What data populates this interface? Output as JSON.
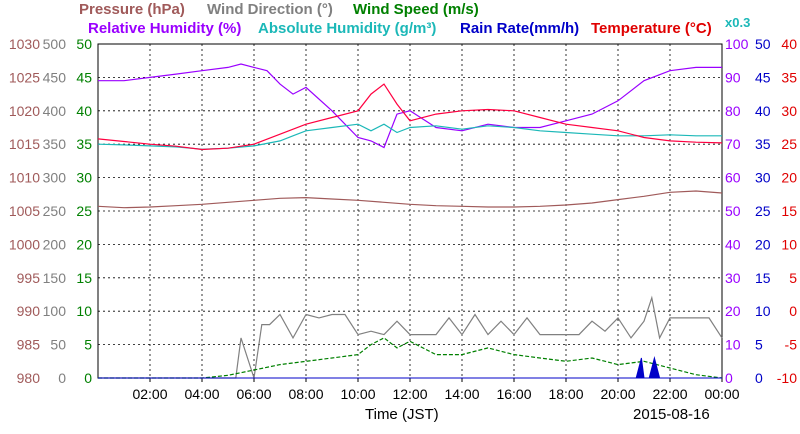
{
  "chart_data": {
    "type": "line",
    "legend": {
      "pressure": "Pressure (hPa)",
      "wind_direction": "Wind Direction (°)",
      "wind_speed": "Wind Speed (m/s)",
      "relative_humidity": "Relative Humidity (%)",
      "absolute_humidity": "Absolute Humidity (g/m³)",
      "rain_rate": "Rain Rate(mm/h)",
      "temperature": "Temperature (°C)",
      "ah_factor": "x0.3"
    },
    "xlabel": "Time (JST)",
    "date": "2015-08-16",
    "x_ticks": [
      "02:00",
      "04:00",
      "06:00",
      "08:00",
      "10:00",
      "12:00",
      "14:00",
      "16:00",
      "18:00",
      "20:00",
      "22:00",
      "00:00"
    ],
    "x_range_hours": [
      0,
      24
    ],
    "grid": true,
    "axes": {
      "pressure": {
        "ticks": [
          "980",
          "985",
          "990",
          "995",
          "1000",
          "1005",
          "1010",
          "1015",
          "1020",
          "1025",
          "1030"
        ],
        "range": [
          980,
          1030
        ],
        "color": "#a05a5a"
      },
      "wind_direction": {
        "ticks": [
          "0",
          "50",
          "100",
          "150",
          "200",
          "250",
          "300",
          "350",
          "400",
          "450",
          "500"
        ],
        "range": [
          0,
          500
        ],
        "color": "#808080"
      },
      "wind_speed": {
        "ticks": [
          "0",
          "5",
          "10",
          "15",
          "20",
          "25",
          "30",
          "35",
          "40",
          "45",
          "50"
        ],
        "range": [
          0,
          50
        ],
        "color": "#008000"
      },
      "relative_humidity": {
        "ticks": [
          "0",
          "10",
          "20",
          "30",
          "40",
          "50",
          "60",
          "70",
          "80",
          "90",
          "100"
        ],
        "range": [
          0,
          100
        ],
        "color": "#9a00ff"
      },
      "rain_rate": {
        "ticks": [
          "0",
          "5",
          "10",
          "15",
          "20",
          "25",
          "30",
          "35",
          "40",
          "45",
          "50"
        ],
        "range": [
          0,
          50
        ],
        "color": "#0000c8"
      },
      "temperature": {
        "ticks": [
          "-10",
          "-5",
          "0",
          "5",
          "10",
          "15",
          "20",
          "25",
          "30",
          "35",
          "40"
        ],
        "range": [
          -10,
          40
        ],
        "color": "#e00000"
      }
    },
    "series": [
      {
        "name": "Pressure (hPa)",
        "color": "#a05a5a",
        "x": [
          0,
          1,
          2,
          3,
          4,
          5,
          6,
          7,
          8,
          9,
          10,
          11,
          12,
          13,
          14,
          15,
          16,
          17,
          18,
          19,
          20,
          21,
          22,
          23,
          24
        ],
        "y": [
          1005.7,
          1005.5,
          1005.6,
          1005.8,
          1006.0,
          1006.3,
          1006.6,
          1006.9,
          1007.0,
          1006.8,
          1006.6,
          1006.3,
          1006.0,
          1005.8,
          1005.7,
          1005.6,
          1005.6,
          1005.7,
          1005.9,
          1006.2,
          1006.7,
          1007.2,
          1007.8,
          1008.0,
          1007.7
        ]
      },
      {
        "name": "Relative Humidity (%)",
        "color": "#9a00ff",
        "x": [
          0,
          1,
          2,
          3,
          4,
          5,
          5.5,
          6,
          6.5,
          7,
          7.5,
          8,
          9,
          10,
          10.5,
          11,
          11.5,
          12,
          13,
          14,
          15,
          16,
          17,
          18,
          19,
          20,
          21,
          22,
          23,
          24
        ],
        "y": [
          89,
          89,
          90,
          91,
          92,
          93,
          94,
          93,
          92,
          88,
          85,
          87,
          80,
          72,
          71,
          69,
          79,
          80,
          75,
          74,
          76,
          75,
          75,
          77,
          79,
          83,
          89,
          92,
          93,
          93
        ]
      },
      {
        "name": "Absolute Humidity (g/m³)",
        "color": "#1cb8b8",
        "x": [
          0,
          1,
          2,
          3,
          4,
          5,
          6,
          7,
          7.5,
          8,
          9,
          10,
          10.5,
          11,
          11.5,
          12,
          13,
          14,
          15,
          16,
          17,
          18,
          19,
          20,
          21,
          22,
          23,
          24
        ],
        "y": [
          70.0,
          69.8,
          69.5,
          69.2,
          68.5,
          68.8,
          69.5,
          71.0,
          72.5,
          74.0,
          75.0,
          76.0,
          74.0,
          76.0,
          73.5,
          75.0,
          75.5,
          74.5,
          75.5,
          75.0,
          74.0,
          73.5,
          73.0,
          72.5,
          72.5,
          72.8,
          72.5,
          72.5
        ]
      },
      {
        "name": "Temperature (°C)",
        "color": "#ff0040",
        "x": [
          0,
          1,
          2,
          3,
          4,
          5,
          6,
          7,
          8,
          9,
          10,
          10.5,
          11,
          11.5,
          12,
          13,
          14,
          15,
          16,
          17,
          18,
          19,
          20,
          21,
          22,
          23,
          24
        ],
        "y": [
          25.8,
          25.4,
          25.0,
          24.7,
          24.2,
          24.4,
          25.0,
          26.5,
          28.0,
          29.0,
          30.0,
          32.5,
          34.0,
          31.0,
          28.5,
          29.5,
          30.0,
          30.2,
          30.0,
          29.0,
          28.0,
          27.5,
          27.0,
          26.0,
          25.5,
          25.3,
          25.2
        ]
      },
      {
        "name": "Wind Direction (°)",
        "color": "#808080",
        "x": [
          0,
          5.3,
          5.5,
          6,
          6.3,
          6.6,
          7,
          7.5,
          8,
          8.5,
          9,
          9.5,
          10,
          10.5,
          11,
          11.5,
          12,
          12.5,
          13,
          13.5,
          14,
          14.5,
          15,
          15.5,
          16,
          16.5,
          17,
          17.5,
          18,
          18.5,
          19,
          19.5,
          20,
          20.5,
          21,
          21.3,
          21.6,
          22,
          22.5,
          23,
          23.5,
          24
        ],
        "y": [
          0,
          0,
          60,
          0,
          80,
          80,
          95,
          60,
          95,
          90,
          95,
          95,
          65,
          70,
          65,
          85,
          65,
          65,
          65,
          90,
          65,
          95,
          65,
          85,
          65,
          90,
          65,
          65,
          65,
          65,
          85,
          70,
          90,
          60,
          85,
          120,
          60,
          90,
          90,
          90,
          90,
          60
        ]
      },
      {
        "name": "Wind Speed (m/s)",
        "color": "#008000",
        "x": [
          0,
          4,
          5,
          6,
          7,
          8,
          9,
          10,
          10.5,
          11,
          11.5,
          12,
          13,
          14,
          15,
          16,
          17,
          18,
          19,
          20,
          21,
          22,
          23,
          24
        ],
        "y": [
          0,
          0,
          0.4,
          1.2,
          2.0,
          2.5,
          3.0,
          3.5,
          5.0,
          6.0,
          4.5,
          5.5,
          3.5,
          3.5,
          4.5,
          3.5,
          3.0,
          2.5,
          3.0,
          2.0,
          2.5,
          1.5,
          0.5,
          0
        ]
      },
      {
        "name": "Rain Rate(mm/h)",
        "color": "#0000c8",
        "x": [
          0,
          20.5,
          20.7,
          20.9,
          21.0,
          21.2,
          21.4,
          21.6,
          24
        ],
        "y": [
          0,
          0,
          0,
          3,
          0,
          0,
          3,
          0,
          0
        ]
      }
    ]
  }
}
